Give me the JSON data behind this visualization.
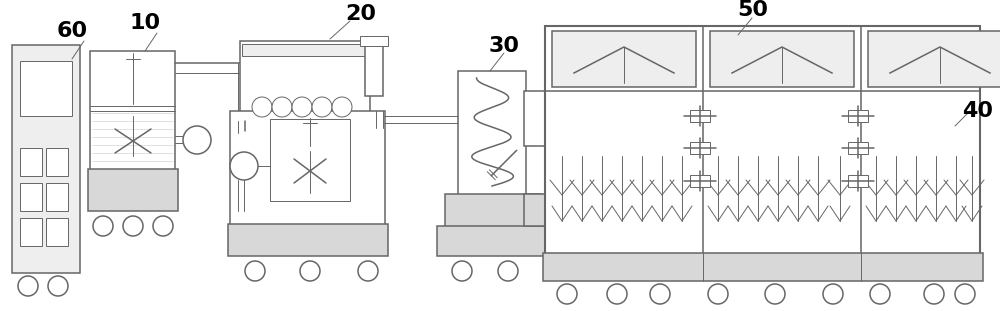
{
  "fig_width": 10.0,
  "fig_height": 3.11,
  "lc": "#999999",
  "dc": "#666666",
  "fc_gray": "#d8d8d8",
  "fc_lgray": "#eeeeee",
  "lw1": 0.7,
  "lw2": 1.1,
  "lw3": 1.5
}
